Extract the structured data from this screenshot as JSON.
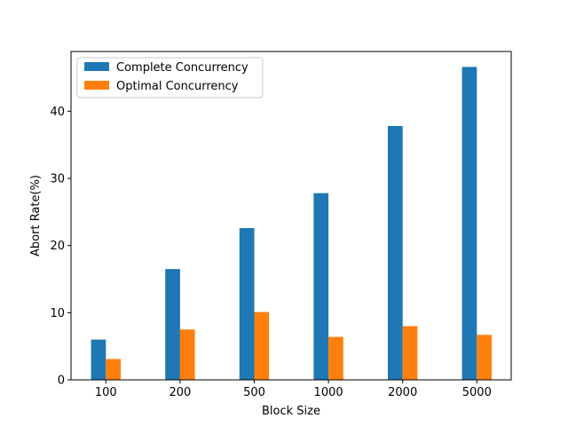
{
  "chart_data": {
    "type": "bar",
    "categories": [
      "100",
      "200",
      "500",
      "1000",
      "2000",
      "5000"
    ],
    "series": [
      {
        "name": "Complete Concurrency",
        "color": "#1f77b4",
        "values": [
          6.0,
          16.5,
          22.6,
          27.8,
          37.8,
          46.6
        ]
      },
      {
        "name": "Optimal Concurrency",
        "color": "#ff7f0e",
        "values": [
          3.1,
          7.5,
          10.1,
          6.4,
          8.0,
          6.7
        ]
      }
    ],
    "xlabel": "Block Size",
    "ylabel": "Abort Rate(%)",
    "ylim": [
      0,
      48.9
    ],
    "yticks": [
      0,
      10,
      20,
      30,
      40
    ],
    "legend": "top-left",
    "grid": false
  }
}
